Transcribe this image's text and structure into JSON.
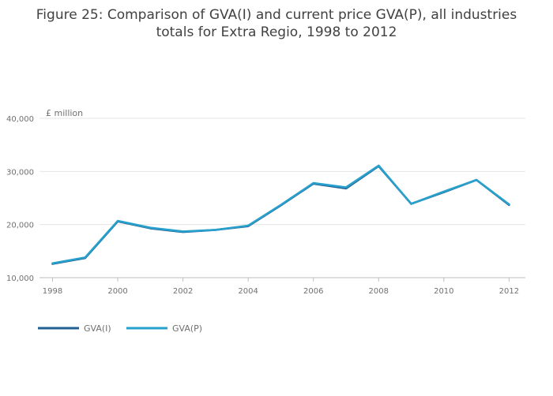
{
  "chart_data": {
    "type": "line",
    "title": "Figure 25: Comparison of GVA(I) and current price GVA(P), all industries totals for Extra Regio, 1998 to 2012",
    "xlabel": "",
    "ylabel": "£ million",
    "x": [
      1998,
      1999,
      2000,
      2001,
      2002,
      2003,
      2004,
      2005,
      2006,
      2007,
      2008,
      2009,
      2010,
      2011,
      2012
    ],
    "series": [
      {
        "name": "GVA(I)",
        "color": "#206095",
        "values": [
          12600,
          13700,
          20600,
          19300,
          18600,
          19000,
          19700,
          23600,
          27700,
          26800,
          31000,
          23900,
          26100,
          28400,
          23700
        ]
      },
      {
        "name": "GVA(P)",
        "color": "#27a0cc",
        "values": [
          12700,
          13800,
          20700,
          19400,
          18700,
          19000,
          19800,
          23700,
          27800,
          27000,
          31100,
          23900,
          26200,
          28400,
          23800
        ]
      }
    ],
    "xlim": [
      1997.6,
      2012.5
    ],
    "ylim": [
      10000,
      40000
    ],
    "x_ticks": [
      1998,
      2000,
      2002,
      2004,
      2006,
      2008,
      2010,
      2012
    ],
    "y_ticks": [
      10000,
      20000,
      30000,
      40000
    ],
    "y_tick_labels": [
      "10,000",
      "20,000",
      "30,000",
      "40,000"
    ],
    "grid": true,
    "legend_position": "bottom-left",
    "colors": {
      "grid": "#e6e6e6",
      "axis": "#bebebe",
      "text": "#707071"
    }
  }
}
